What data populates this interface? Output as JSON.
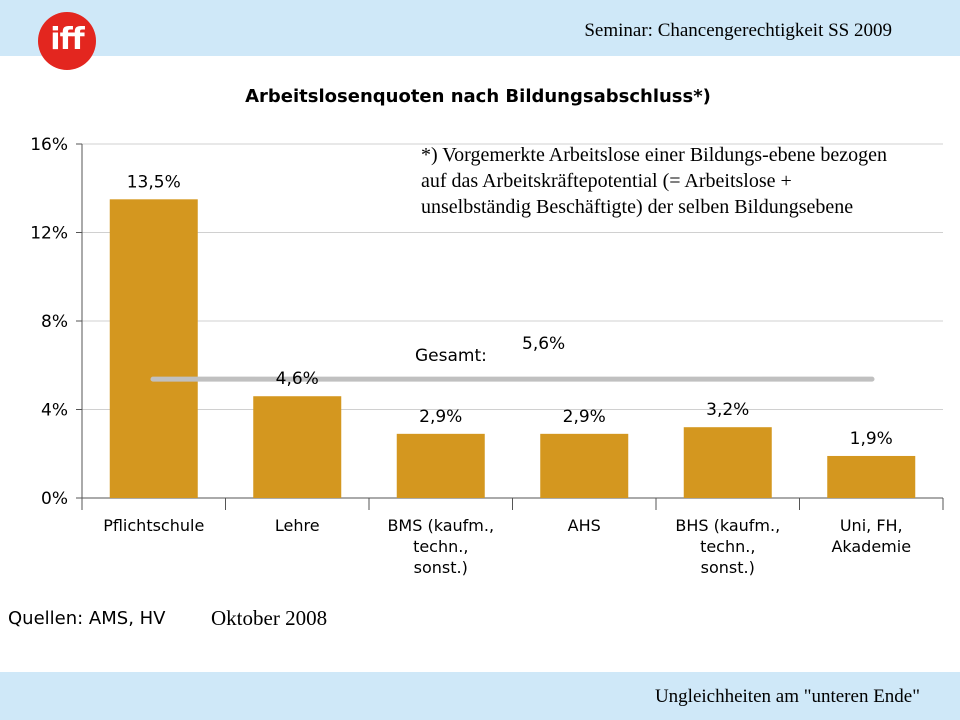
{
  "header": {
    "logo_text": "iff",
    "seminar": "Seminar: Chancengerechtigkeit SS 2009"
  },
  "footer": {
    "text": "Ungleichheiten am \"unteren Ende\""
  },
  "footnote": "*) Vorgemerkte Arbeitslose einer Bildungs-ebene bezogen auf das Arbeitskräftepotential (= Arbeitslose + unselbständig Beschäftigte) der selben Bildungsebene",
  "sources": "Quellen: AMS, HV",
  "date_note": "Oktober 2008",
  "colors": {
    "bar": "#d4971f",
    "reference_line": "#c0c0c0",
    "band": "#cfe8f8",
    "logo": "#e3261f"
  },
  "chart_data": {
    "type": "bar",
    "title": "Arbeitslosenquoten nach Bildungsabschluss*)",
    "categories": [
      [
        "Pflichtschule"
      ],
      [
        "Lehre"
      ],
      [
        "BMS (kaufm.,",
        "techn.,",
        "sonst.)"
      ],
      [
        "AHS"
      ],
      [
        "BHS (kaufm.,",
        "techn.,",
        "sonst.)"
      ],
      [
        "Uni, FH,",
        "Akademie"
      ]
    ],
    "values": [
      13.5,
      4.6,
      2.9,
      2.9,
      3.2,
      1.9
    ],
    "value_labels": [
      "13,5%",
      "4,6%",
      "2,9%",
      "2,9%",
      "3,2%",
      "1,9%"
    ],
    "ylim": [
      0,
      16
    ],
    "yticks": [
      0,
      4,
      8,
      12,
      16
    ],
    "ytick_labels": [
      "0%",
      "4%",
      "8%",
      "12%",
      "16%"
    ],
    "grid": true,
    "reference_line": {
      "label": "Gesamt:",
      "value": 5.6,
      "value_label": "5,6%"
    },
    "xlabel": "",
    "ylabel": ""
  }
}
